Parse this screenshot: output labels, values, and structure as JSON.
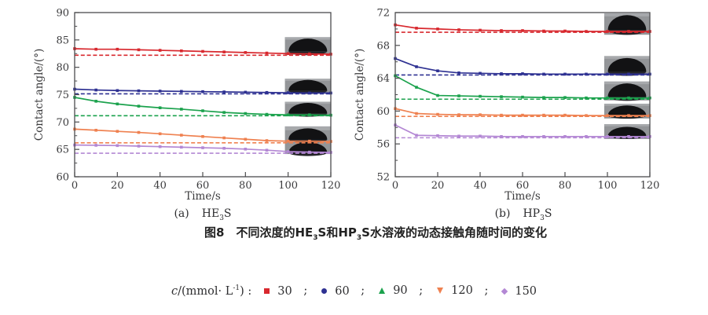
{
  "figure": {
    "caption_a": {
      "index": "(a)",
      "pre": "HE",
      "sub": "3",
      "post": "S"
    },
    "caption_b": {
      "index": "(b)",
      "pre": "HP",
      "sub": "3",
      "post": "S"
    },
    "main_caption": {
      "p1": "图8　不同浓度的HE",
      "s1": "3",
      "p2": "S和HP",
      "s2": "3",
      "p3": "S水溶液的动态接触角随时间的变化"
    }
  },
  "legend": {
    "prefix_italic": "c",
    "prefix_unit": "/(mmol· L",
    "prefix_sup": "-1",
    "prefix_close": ") :",
    "separator": ";",
    "items": [
      {
        "value": "30",
        "color": "#d8282e",
        "shape": "square"
      },
      {
        "value": "60",
        "color": "#2e3192",
        "shape": "circle"
      },
      {
        "value": "90",
        "color": "#1ba24d",
        "shape": "triangle-up"
      },
      {
        "value": "120",
        "color": "#ef8150",
        "shape": "triangle-down"
      },
      {
        "value": "150",
        "color": "#b387d4",
        "shape": "diamond"
      }
    ]
  },
  "chart_data": [
    {
      "type": "line",
      "title": "(a) HE3S",
      "xlabel": "Time/s",
      "ylabel": "Contact angle/(°)",
      "xlim": [
        0,
        120
      ],
      "ylim": [
        60,
        90
      ],
      "xticks": [
        0,
        20,
        40,
        60,
        80,
        100,
        120
      ],
      "yticks": [
        60,
        65,
        70,
        75,
        80,
        85,
        90
      ],
      "y_minor_step": 2.5,
      "grid": false,
      "x": [
        0,
        10,
        20,
        30,
        40,
        50,
        60,
        70,
        80,
        90,
        100,
        110,
        120
      ],
      "series": [
        {
          "name": "30 mmol/L",
          "color": "#d8282e",
          "values": [
            83.4,
            83.3,
            83.3,
            83.2,
            83.1,
            83.0,
            82.9,
            82.8,
            82.7,
            82.6,
            82.5,
            82.45,
            82.4
          ],
          "equilibrium_dashed": 82.2
        },
        {
          "name": "60 mmol/L",
          "color": "#2e3192",
          "values": [
            76.0,
            75.85,
            75.75,
            75.7,
            75.65,
            75.6,
            75.55,
            75.5,
            75.45,
            75.4,
            75.35,
            75.3,
            75.3
          ],
          "equilibrium_dashed": 75.15
        },
        {
          "name": "90 mmol/L",
          "color": "#1ba24d",
          "values": [
            74.5,
            73.8,
            73.3,
            72.9,
            72.6,
            72.35,
            72.05,
            71.75,
            71.55,
            71.4,
            71.3,
            71.3,
            71.25
          ],
          "equilibrium_dashed": 71.15
        },
        {
          "name": "120 mmol/L",
          "color": "#ef8150",
          "values": [
            68.7,
            68.5,
            68.3,
            68.1,
            67.85,
            67.6,
            67.35,
            67.1,
            66.85,
            66.6,
            66.5,
            66.5,
            66.45
          ],
          "equilibrium_dashed": 66.2
        },
        {
          "name": "150 mmol/L",
          "color": "#b387d4",
          "values": [
            65.8,
            65.75,
            65.7,
            65.6,
            65.5,
            65.4,
            65.3,
            65.2,
            65.05,
            64.85,
            64.6,
            64.5,
            64.45
          ],
          "equilibrium_dashed": 64.3
        }
      ],
      "insets": [
        {
          "x0": 98.5,
          "x1": 120,
          "y_top": 85.5,
          "y_bottom": 82.3,
          "droplets": [
            {
              "base": 0.8,
              "h": 0.72
            }
          ]
        },
        {
          "x0": 98.5,
          "x1": 120,
          "y_top": 77.9,
          "y_bottom": 75.2,
          "droplets": [
            {
              "base": 0.8,
              "h": 0.72
            }
          ]
        },
        {
          "x0": 98.5,
          "x1": 120,
          "y_top": 73.7,
          "y_bottom": 71.05,
          "droplets": [
            {
              "base": 0.8,
              "h": 0.72
            }
          ]
        },
        {
          "x0": 98.5,
          "x1": 120,
          "y_top": 69.2,
          "y_bottom": 64.15,
          "droplets": [
            {
              "base": 0.47,
              "h": 0.4
            },
            {
              "base": 0.95,
              "h": 0.38
            }
          ]
        }
      ]
    },
    {
      "type": "line",
      "title": "(b) HP3S",
      "xlabel": "Time/s",
      "ylabel": "Contact angle/(°)",
      "xlim": [
        0,
        120
      ],
      "ylim": [
        52,
        72
      ],
      "xticks": [
        0,
        20,
        40,
        60,
        80,
        100,
        120
      ],
      "yticks": [
        52,
        56,
        60,
        64,
        68,
        72
      ],
      "y_minor_step": 2,
      "grid": false,
      "x": [
        0,
        10,
        20,
        30,
        40,
        50,
        60,
        70,
        80,
        90,
        100,
        110,
        120
      ],
      "series": [
        {
          "name": "30 mmol/L",
          "color": "#d8282e",
          "values": [
            70.5,
            70.1,
            70.0,
            69.9,
            69.85,
            69.8,
            69.8,
            69.75,
            69.75,
            69.7,
            69.7,
            69.7,
            69.7
          ],
          "equilibrium_dashed": 69.6
        },
        {
          "name": "60 mmol/L",
          "color": "#2e3192",
          "values": [
            66.4,
            65.4,
            64.9,
            64.65,
            64.6,
            64.55,
            64.55,
            64.5,
            64.5,
            64.5,
            64.5,
            64.5,
            64.5
          ],
          "equilibrium_dashed": 64.4
        },
        {
          "name": "90 mmol/L",
          "color": "#1ba24d",
          "values": [
            64.3,
            62.9,
            61.9,
            61.85,
            61.8,
            61.75,
            61.7,
            61.65,
            61.65,
            61.6,
            61.6,
            61.6,
            61.6
          ],
          "equilibrium_dashed": 61.45
        },
        {
          "name": "120 mmol/L",
          "color": "#ef8150",
          "values": [
            60.3,
            59.7,
            59.6,
            59.55,
            59.55,
            59.5,
            59.5,
            59.5,
            59.5,
            59.45,
            59.45,
            59.45,
            59.45
          ],
          "equilibrium_dashed": 59.35
        },
        {
          "name": "150 mmol/L",
          "color": "#b387d4",
          "values": [
            58.3,
            57.05,
            57.0,
            56.95,
            56.95,
            56.9,
            56.9,
            56.9,
            56.9,
            56.9,
            56.9,
            56.9,
            56.9
          ],
          "equilibrium_dashed": 56.75
        }
      ],
      "insets": [
        {
          "x0": 98.5,
          "x1": 120,
          "y_top": 71.9,
          "y_bottom": 69.3,
          "droplets": [
            {
              "base": 0.78,
              "h": 0.7
            }
          ]
        },
        {
          "x0": 98.5,
          "x1": 120,
          "y_top": 66.7,
          "y_bottom": 64.35,
          "droplets": [
            {
              "base": 0.8,
              "h": 0.7
            }
          ]
        },
        {
          "x0": 98.5,
          "x1": 120,
          "y_top": 63.6,
          "y_bottom": 61.3,
          "droplets": [
            {
              "base": 0.8,
              "h": 0.7
            }
          ]
        },
        {
          "x0": 98.5,
          "x1": 120,
          "y_top": 60.9,
          "y_bottom": 59.1,
          "droplets": [
            {
              "base": 0.8,
              "h": 0.68
            }
          ]
        },
        {
          "x0": 98.5,
          "x1": 120,
          "y_top": 58.4,
          "y_bottom": 56.6,
          "droplets": [
            {
              "base": 0.8,
              "h": 0.62
            }
          ]
        }
      ]
    }
  ]
}
